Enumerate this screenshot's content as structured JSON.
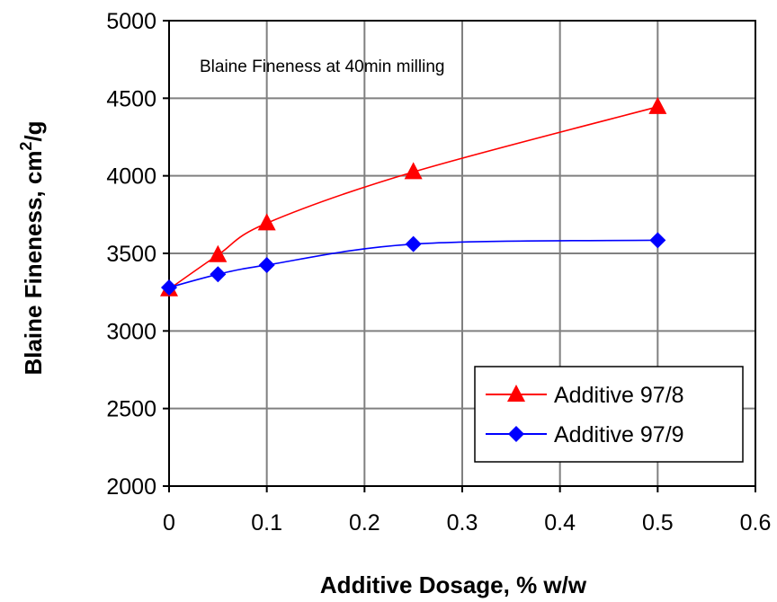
{
  "chart_data": {
    "type": "line",
    "title": "",
    "annotation": "Blaine Fineness at 40min milling",
    "xlabel": "Additive Dosage, % w/w",
    "ylabel_main": "Blaine Fineness, cm",
    "ylabel_sup": "2",
    "ylabel_tail": "/g",
    "xlim": [
      0,
      0.6
    ],
    "ylim": [
      2000,
      5000
    ],
    "x_ticks": [
      "0",
      "0.1",
      "0.2",
      "0.3",
      "0.4",
      "0.5",
      "0.6"
    ],
    "y_ticks": [
      "2000",
      "2500",
      "3000",
      "3500",
      "4000",
      "4500",
      "5000"
    ],
    "grid": true,
    "legend_position": "bottom-right",
    "series": [
      {
        "name": "Additive 97/8",
        "color": "#ff0000",
        "marker": "triangle",
        "x": [
          0,
          0.05,
          0.1,
          0.25,
          0.5
        ],
        "y": [
          3270,
          3490,
          3695,
          4025,
          4445
        ]
      },
      {
        "name": "Additive 97/9",
        "color": "#0000ff",
        "marker": "diamond",
        "x": [
          0,
          0.05,
          0.1,
          0.25,
          0.5
        ],
        "y": [
          3280,
          3365,
          3425,
          3560,
          3585
        ]
      }
    ]
  }
}
